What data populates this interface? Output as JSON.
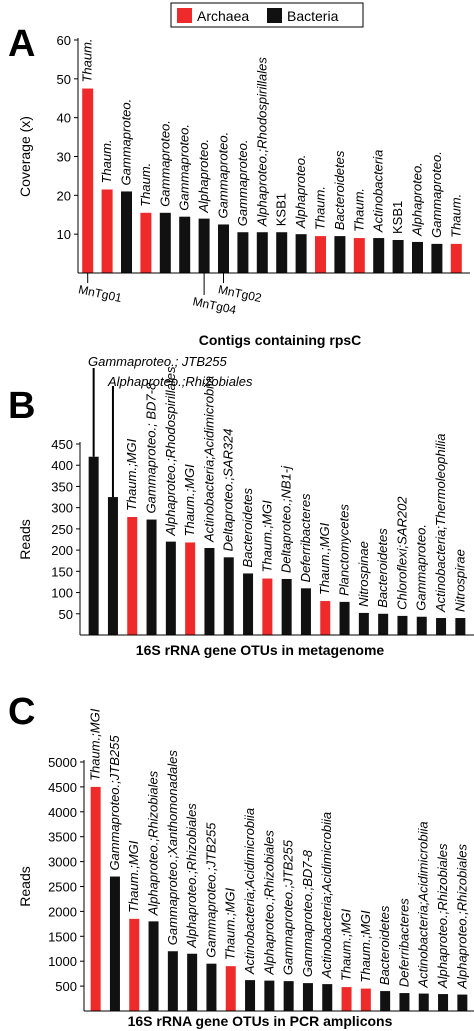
{
  "legend": {
    "items": [
      {
        "label": "Archaea",
        "color": "#ee2a2a"
      },
      {
        "label": "Bacteria",
        "color": "#111111"
      }
    ]
  },
  "colors": {
    "Archaea": "#ee2a2a",
    "Bacteria": "#111111"
  },
  "chart_data": [
    {
      "panel": "A",
      "type": "bar",
      "ylabel": "Coverage (x)",
      "xlabel": "Contigs containing rpsC",
      "ylim": [
        0,
        60
      ],
      "yticks": [
        10,
        20,
        30,
        40,
        50,
        60
      ],
      "grid": false,
      "categories": [
        "Thaum.",
        "Thaum.",
        "Gammaproteo.",
        "Thaum.",
        "Gammaproteo.",
        "Gammaproteo.",
        "Alphaproteo.",
        "Gammaproteo.",
        "Gammaproteo.",
        "Alphaproteo.;Rhodospirillales",
        "KSB1",
        "Alphaproteo.",
        "Thaum.",
        "Bacteroidetes",
        "Thaum.",
        "Actinobacteria",
        "KSB1",
        "Alphaproteo.",
        "Gammaproteo.",
        "Thaum."
      ],
      "italic": [
        true,
        true,
        true,
        true,
        true,
        true,
        true,
        true,
        true,
        true,
        false,
        true,
        true,
        true,
        true,
        true,
        false,
        true,
        true,
        true
      ],
      "domains": [
        "Archaea",
        "Archaea",
        "Bacteria",
        "Archaea",
        "Bacteria",
        "Bacteria",
        "Bacteria",
        "Bacteria",
        "Bacteria",
        "Bacteria",
        "Bacteria",
        "Bacteria",
        "Archaea",
        "Bacteria",
        "Archaea",
        "Bacteria",
        "Bacteria",
        "Bacteria",
        "Bacteria",
        "Archaea"
      ],
      "values": [
        47.5,
        21.5,
        21,
        15.5,
        15.5,
        14.5,
        14,
        12.5,
        10.5,
        10.5,
        10.5,
        10,
        9.5,
        9.5,
        9,
        9,
        8.5,
        8,
        7.5,
        7.5
      ],
      "annotations": [
        {
          "text": "MnTg01",
          "bar": 0
        },
        {
          "text": "MnTg04",
          "bar": 6
        },
        {
          "text": "MnTg02",
          "bar": 7
        }
      ]
    },
    {
      "panel": "B",
      "type": "bar",
      "ylabel": "Reads",
      "xlabel": "16S rRNA gene OTUs in metagenome",
      "ylim": [
        0,
        450
      ],
      "yticks": [
        50,
        100,
        150,
        200,
        250,
        300,
        350,
        400,
        450
      ],
      "grid": false,
      "categories": [
        "Gammaproteo.; JTB255",
        "Alphaproteo.;Rhizobiales",
        "Thaum.;MGI",
        "Gammaproteo.; BD7-8",
        "Alphaproteo.;Rhodospirillales",
        "Thaum.;MGI",
        "Actinobacteria;Acidimicrobiia",
        "Deltaproteo.;SAR324",
        "Bacteroidetes",
        "Thaum.;MGI",
        "Deltaproteo.;NB1-j",
        "Deferribacteres",
        "Thaum.;MGI",
        "Planctomycetes",
        "Nitrospinae",
        "Bacteroidetes",
        "Chloroflexi;SAR202",
        "Gammaproteo.",
        "Actinobacteria;Thermoleophilia",
        "Nitrospirae"
      ],
      "domains": [
        "Bacteria",
        "Bacteria",
        "Archaea",
        "Bacteria",
        "Bacteria",
        "Archaea",
        "Bacteria",
        "Bacteria",
        "Bacteria",
        "Archaea",
        "Bacteria",
        "Bacteria",
        "Archaea",
        "Bacteria",
        "Bacteria",
        "Bacteria",
        "Bacteria",
        "Bacteria",
        "Bacteria",
        "Bacteria"
      ],
      "values": [
        420,
        325,
        278,
        272,
        220,
        218,
        205,
        183,
        145,
        133,
        132,
        110,
        80,
        78,
        52,
        50,
        45,
        43,
        40,
        40
      ]
    },
    {
      "panel": "C",
      "type": "bar",
      "ylabel": "Reads",
      "xlabel": "16S rRNA gene OTUs in PCR amplicons",
      "ylim": [
        0,
        5000
      ],
      "yticks": [
        500,
        1000,
        1500,
        2000,
        2500,
        3000,
        3500,
        4000,
        4500,
        5000
      ],
      "grid": false,
      "categories": [
        "Thaum.;MGI",
        "Gammaproteo.;JTB255",
        "Thaum.;MGI",
        "Alphaproteo.;Rhizobiales",
        "Gammaproteo.;Xanthomonadales",
        "Alphaproteo.;Rhizobiales",
        "Gammaproteo.;JTB255",
        "Thaum.;MGI",
        "Actinobacteria;Acidimicrobiia",
        "Alphaproteo.;Rhizobiales",
        "Gammaproteo.;JTB255",
        "Gammaproteo.;BD7-8",
        "Actinobacteria;Acidimicrobiia",
        "Thaum.;MGI",
        "Thaum.;MGI",
        "Bacteroidetes",
        "Deferribacteres",
        "Actinobacteria;Acidimicrobiia",
        "Alphaproteo.;Rhizobiales",
        "Alphaproteo.;Rhizobiales"
      ],
      "domains": [
        "Archaea",
        "Bacteria",
        "Archaea",
        "Bacteria",
        "Bacteria",
        "Bacteria",
        "Bacteria",
        "Archaea",
        "Bacteria",
        "Bacteria",
        "Bacteria",
        "Bacteria",
        "Bacteria",
        "Archaea",
        "Archaea",
        "Bacteria",
        "Bacteria",
        "Bacteria",
        "Bacteria",
        "Bacteria"
      ],
      "values": [
        4500,
        2700,
        1850,
        1800,
        1200,
        1150,
        950,
        900,
        620,
        610,
        600,
        560,
        540,
        480,
        450,
        400,
        360,
        350,
        340,
        330
      ]
    }
  ]
}
